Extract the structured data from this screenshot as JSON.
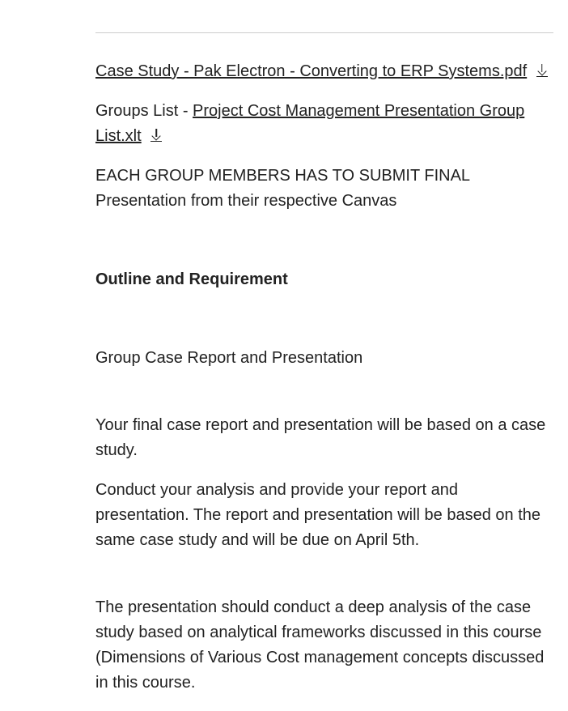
{
  "link1": {
    "text": "Case Study - Pak Electron - Converting to ERP Systems.pdf"
  },
  "groups_prefix": "Groups List - ",
  "link2": {
    "text": "Project Cost Management Presentation Group List.xlt"
  },
  "submit_note": "EACH GROUP MEMBERS HAS TO SUBMIT FINAL Presentation from their respective Canvas",
  "outline_heading": "Outline and Requirement",
  "group_case_title": "Group Case Report and Presentation",
  "para1": "Your final case report and presentation will be based on a case study.",
  "para2": "Conduct your analysis and provide your report and presentation. The report and presentation will be based on the same case study and will be due on April 5th.",
  "para3": "The presentation should conduct a deep analysis of the case study based on analytical frameworks discussed in this course (Dimensions of Various Cost management concepts discussed in this course."
}
